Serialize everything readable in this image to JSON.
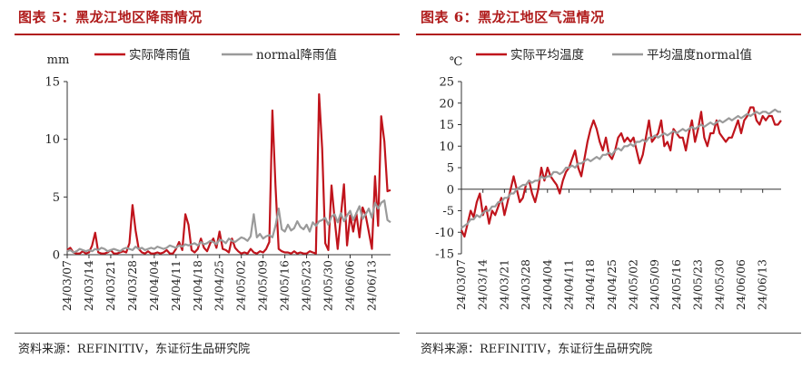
{
  "panels": [
    {
      "title": "图表 5：黑龙江地区降雨情况",
      "source": "资料来源：REFINITIV，东证衍生品研究院"
    },
    {
      "title": "图表 6：黑龙江地区气温情况",
      "source": "资料来源：REFINITIV，东证衍生品研究院"
    }
  ],
  "colors": {
    "accent": "#b01c1c",
    "actual": "#c0141c",
    "normal": "#9a9a9a"
  },
  "chart_data": [
    {
      "type": "line",
      "title": "图表 5：黑龙江地区降雨情况",
      "ylabel": "mm",
      "ylim": [
        0,
        15
      ],
      "yticks": [
        0,
        5,
        10,
        15
      ],
      "xlim": [
        0,
        104
      ],
      "xtick_labels": [
        "24/03/07",
        "24/03/14",
        "24/03/21",
        "24/03/28",
        "24/04/04",
        "24/04/11",
        "24/04/18",
        "24/04/25",
        "24/05/02",
        "24/05/09",
        "24/05/16",
        "24/05/23",
        "24/05/30",
        "24/06/06",
        "24/06/13"
      ],
      "legend_position": "top",
      "series": [
        {
          "name": "实际降雨值",
          "color": "#c0141c",
          "x": [
            0,
            1,
            2,
            3,
            4,
            5,
            6,
            7,
            8,
            9,
            10,
            11,
            12,
            13,
            14,
            15,
            16,
            17,
            18,
            19,
            20,
            21,
            22,
            23,
            24,
            25,
            26,
            27,
            28,
            29,
            30,
            31,
            32,
            33,
            34,
            35,
            36,
            37,
            38,
            39,
            40,
            41,
            42,
            43,
            44,
            45,
            46,
            47,
            48,
            49,
            50,
            51,
            52,
            53,
            54,
            55,
            56,
            57,
            58,
            59,
            60,
            61,
            62,
            63,
            64,
            65,
            66,
            67,
            68,
            69,
            70,
            71,
            72,
            73,
            74,
            75,
            76,
            77,
            78,
            79,
            80,
            81,
            82,
            83,
            84,
            85,
            86,
            87,
            88,
            89,
            90,
            91,
            92,
            93,
            94,
            95,
            96,
            97,
            98,
            99,
            100,
            101,
            102,
            103,
            104
          ],
          "y": [
            0.4,
            0.6,
            0.2,
            0.1,
            0.1,
            0.3,
            0.1,
            0.2,
            0.8,
            1.9,
            0.2,
            0.1,
            0.1,
            0.2,
            0.4,
            0.1,
            0.1,
            0.2,
            0.3,
            0.2,
            1.0,
            4.3,
            2.1,
            0.5,
            0.2,
            0.1,
            0.3,
            0.1,
            0.1,
            0.2,
            0.1,
            0.2,
            0.4,
            0.1,
            0.1,
            0.5,
            1.1,
            0.4,
            3.5,
            2.6,
            0.4,
            0.2,
            0.5,
            1.4,
            0.6,
            0.3,
            1.0,
            1.4,
            0.6,
            2.0,
            0.5,
            0.4,
            0.2,
            1.4,
            0.6,
            0.3,
            0.1,
            0.2,
            0.1,
            0.5,
            0.2,
            0.1,
            0.3,
            0.2,
            0.5,
            1.1,
            12.5,
            6.0,
            0.5,
            0.3,
            0.2,
            0.2,
            0.1,
            0.3,
            0.1,
            0.2,
            0.1,
            0.1,
            0.3,
            0.2,
            0.1,
            13.9,
            9.2,
            1.0,
            0.4,
            6.0,
            3.1,
            0.5,
            3.3,
            6.1,
            0.8,
            3.4,
            2.0,
            3.6,
            1.5,
            4.1,
            3.4,
            2.0,
            0.5,
            6.8,
            2.5,
            12.0,
            9.8,
            5.5,
            5.6
          ]
        },
        {
          "name": "normal降雨值",
          "color": "#9a9a9a",
          "x": [
            0,
            1,
            2,
            3,
            4,
            5,
            6,
            7,
            8,
            9,
            10,
            11,
            12,
            13,
            14,
            15,
            16,
            17,
            18,
            19,
            20,
            21,
            22,
            23,
            24,
            25,
            26,
            27,
            28,
            29,
            30,
            31,
            32,
            33,
            34,
            35,
            36,
            37,
            38,
            39,
            40,
            41,
            42,
            43,
            44,
            45,
            46,
            47,
            48,
            49,
            50,
            51,
            52,
            53,
            54,
            55,
            56,
            57,
            58,
            59,
            60,
            61,
            62,
            63,
            64,
            65,
            66,
            67,
            68,
            69,
            70,
            71,
            72,
            73,
            74,
            75,
            76,
            77,
            78,
            79,
            80,
            81,
            82,
            83,
            84,
            85,
            86,
            87,
            88,
            89,
            90,
            91,
            92,
            93,
            94,
            95,
            96,
            97,
            98,
            99,
            100,
            101,
            102,
            103,
            104
          ],
          "y": [
            0.3,
            0.4,
            0.2,
            0.3,
            0.5,
            0.4,
            0.3,
            0.4,
            0.3,
            0.5,
            0.4,
            0.6,
            0.5,
            0.3,
            0.4,
            0.5,
            0.4,
            0.3,
            0.5,
            0.6,
            0.5,
            0.4,
            0.7,
            0.5,
            0.6,
            0.4,
            0.5,
            0.6,
            0.5,
            0.7,
            0.6,
            0.5,
            0.6,
            0.8,
            0.7,
            0.6,
            0.8,
            0.7,
            0.9,
            0.8,
            0.9,
            1.0,
            0.8,
            1.1,
            0.9,
            1.0,
            1.2,
            1.1,
            0.9,
            1.3,
            1.2,
            1.0,
            1.4,
            1.2,
            1.1,
            1.3,
            1.5,
            1.4,
            1.2,
            1.6,
            3.5,
            1.5,
            1.8,
            1.4,
            1.6,
            1.7,
            1.5,
            2.5,
            4.0,
            2.2,
            2.0,
            2.6,
            2.1,
            2.3,
            2.9,
            2.4,
            2.2,
            2.6,
            2.0,
            2.8,
            2.5,
            2.9,
            3.0,
            3.2,
            2.6,
            3.3,
            3.5,
            2.8,
            3.6,
            2.9,
            3.4,
            3.8,
            3.0,
            3.6,
            4.2,
            3.1,
            3.5,
            4.0,
            3.2,
            4.5,
            4.0,
            4.5,
            4.7,
            3.0,
            2.8
          ]
        }
      ]
    },
    {
      "type": "line",
      "title": "图表 6：黑龙江地区气温情况",
      "ylabel": "℃",
      "ylim": [
        -15,
        25
      ],
      "yticks": [
        -15,
        -10,
        -5,
        0,
        5,
        10,
        15,
        20,
        25
      ],
      "xlim": [
        0,
        104
      ],
      "xtick_labels": [
        "24/03/07",
        "24/03/14",
        "24/03/21",
        "24/03/28",
        "24/04/04",
        "24/04/11",
        "24/04/18",
        "24/04/25",
        "24/05/02",
        "24/05/09",
        "24/05/16",
        "24/05/23",
        "24/05/30",
        "24/06/06",
        "24/06/13"
      ],
      "legend_position": "top",
      "series": [
        {
          "name": "实际平均温度",
          "color": "#c0141c",
          "x": [
            0,
            1,
            2,
            3,
            4,
            5,
            6,
            7,
            8,
            9,
            10,
            11,
            12,
            13,
            14,
            15,
            16,
            17,
            18,
            19,
            20,
            21,
            22,
            23,
            24,
            25,
            26,
            27,
            28,
            29,
            30,
            31,
            32,
            33,
            34,
            35,
            36,
            37,
            38,
            39,
            40,
            41,
            42,
            43,
            44,
            45,
            46,
            47,
            48,
            49,
            50,
            51,
            52,
            53,
            54,
            55,
            56,
            57,
            58,
            59,
            60,
            61,
            62,
            63,
            64,
            65,
            66,
            67,
            68,
            69,
            70,
            71,
            72,
            73,
            74,
            75,
            76,
            77,
            78,
            79,
            80,
            81,
            82,
            83,
            84,
            85,
            86,
            87,
            88,
            89,
            90,
            91,
            92,
            93,
            94,
            95,
            96,
            97,
            98,
            99,
            100,
            101,
            102,
            103,
            104
          ],
          "y": [
            -9.5,
            -11,
            -8,
            -5,
            -6.5,
            -3,
            -1,
            -6,
            -4,
            -8,
            -5,
            -6,
            -4,
            -2,
            -6,
            -3,
            0,
            3,
            0,
            -3,
            -2,
            1,
            2,
            -1,
            -3,
            0,
            5,
            2,
            5,
            3,
            2,
            1,
            -1,
            2,
            4,
            5,
            7,
            9,
            5,
            3,
            7,
            11,
            14,
            16,
            14,
            11,
            9,
            12,
            8,
            7,
            9,
            12,
            13,
            11,
            12,
            11,
            12,
            9,
            6,
            8,
            12,
            16,
            11,
            12,
            13,
            16,
            10,
            11,
            9,
            14,
            13,
            12,
            12,
            9,
            13,
            16,
            11,
            14,
            18,
            12,
            10,
            13,
            13,
            16,
            13,
            12,
            11,
            12,
            12,
            14,
            16,
            13,
            16,
            17,
            19,
            19,
            16,
            15,
            17,
            16,
            17,
            17,
            15,
            15,
            16
          ]
        },
        {
          "name": "平均温度normal值",
          "color": "#9a9a9a",
          "x": [
            0,
            1,
            2,
            3,
            4,
            5,
            6,
            7,
            8,
            9,
            10,
            11,
            12,
            13,
            14,
            15,
            16,
            17,
            18,
            19,
            20,
            21,
            22,
            23,
            24,
            25,
            26,
            27,
            28,
            29,
            30,
            31,
            32,
            33,
            34,
            35,
            36,
            37,
            38,
            39,
            40,
            41,
            42,
            43,
            44,
            45,
            46,
            47,
            48,
            49,
            50,
            51,
            52,
            53,
            54,
            55,
            56,
            57,
            58,
            59,
            60,
            61,
            62,
            63,
            64,
            65,
            66,
            67,
            68,
            69,
            70,
            71,
            72,
            73,
            74,
            75,
            76,
            77,
            78,
            79,
            80,
            81,
            82,
            83,
            84,
            85,
            86,
            87,
            88,
            89,
            90,
            91,
            92,
            93,
            94,
            95,
            96,
            97,
            98,
            99,
            100,
            101,
            102,
            103,
            104
          ],
          "y": [
            -9,
            -8.5,
            -8,
            -7,
            -7,
            -6,
            -6.5,
            -5.5,
            -5,
            -5,
            -4,
            -4,
            -3,
            -3,
            -2,
            -2,
            -1,
            -1,
            0,
            0.5,
            1,
            1,
            2,
            1.5,
            2,
            2,
            3,
            2.5,
            3,
            3,
            4,
            4,
            3.5,
            4,
            5,
            5,
            5.5,
            5,
            6,
            6,
            6.5,
            7,
            6.5,
            7,
            7.5,
            7,
            8,
            8,
            8.5,
            8,
            9,
            9.5,
            9,
            10,
            10,
            10.5,
            10,
            11,
            11,
            11.5,
            11,
            12,
            12,
            12.5,
            12,
            12.5,
            13,
            12.5,
            13,
            13.5,
            13,
            13.5,
            14,
            13.5,
            14,
            14.5,
            14,
            14.5,
            15,
            14.5,
            15,
            15.5,
            15,
            15.5,
            16,
            15.5,
            16,
            16.5,
            16,
            16.5,
            17,
            16.5,
            17,
            17.5,
            17,
            17.5,
            18,
            17.5,
            18,
            18,
            17.5,
            18,
            18.5,
            18,
            18
          ]
        }
      ]
    }
  ]
}
